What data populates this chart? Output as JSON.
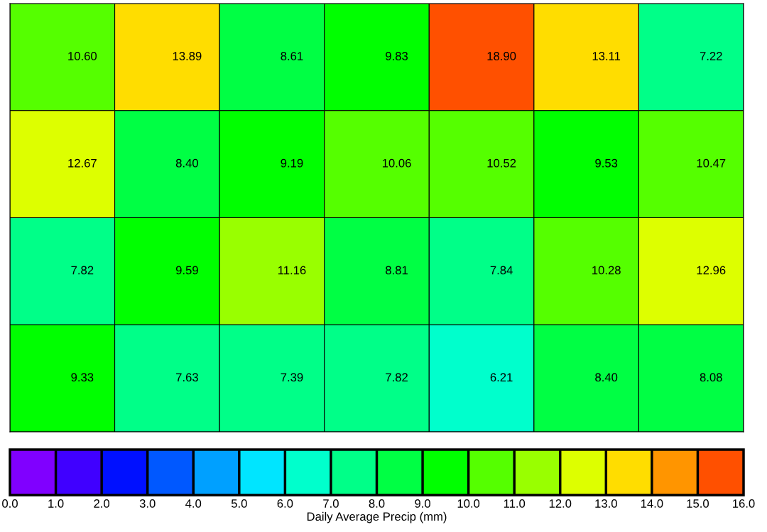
{
  "chart_data": {
    "type": "heatmap",
    "categories": [
      null,
      null,
      null,
      null,
      null,
      null,
      null
    ],
    "y_categories": [
      null,
      null,
      null,
      null
    ],
    "cells": [
      [
        10.6,
        13.89,
        8.61,
        9.83,
        18.9,
        13.11,
        7.22
      ],
      [
        12.67,
        8.4,
        9.19,
        10.06,
        10.52,
        9.53,
        10.47
      ],
      [
        7.82,
        9.59,
        11.16,
        8.81,
        7.84,
        10.28,
        12.96
      ],
      [
        9.33,
        7.63,
        7.39,
        7.82,
        6.21,
        8.4,
        8.08
      ]
    ],
    "cell_labels": [
      [
        "10.60",
        "13.89",
        "8.61",
        "9.83",
        "18.90",
        "13.11",
        "7.22"
      ],
      [
        "12.67",
        "8.40",
        "9.19",
        "10.06",
        "10.52",
        "9.53",
        "10.47"
      ],
      [
        "7.82",
        "9.59",
        "11.16",
        "8.81",
        "7.84",
        "10.28",
        "12.96"
      ],
      [
        "9.33",
        "7.63",
        "7.39",
        "7.82",
        "6.21",
        "8.40",
        "8.08"
      ]
    ],
    "clim": [
      0,
      16
    ],
    "cticks": [
      {
        "value": 0,
        "label": "0.0"
      },
      {
        "value": 1,
        "label": "1.0"
      },
      {
        "value": 2,
        "label": "2.0"
      },
      {
        "value": 3,
        "label": "3.0"
      },
      {
        "value": 4,
        "label": "4.0"
      },
      {
        "value": 5,
        "label": "5.0"
      },
      {
        "value": 6,
        "label": "6.0"
      },
      {
        "value": 7,
        "label": "7.0"
      },
      {
        "value": 8,
        "label": "8.0"
      },
      {
        "value": 9,
        "label": "9.0"
      },
      {
        "value": 10,
        "label": "10.0"
      },
      {
        "value": 11,
        "label": "11.0"
      },
      {
        "value": 12,
        "label": "12.0"
      },
      {
        "value": 13,
        "label": "13.0"
      },
      {
        "value": 14,
        "label": "14.0"
      },
      {
        "value": 15,
        "label": "15.0"
      },
      {
        "value": 16,
        "label": "16.0"
      }
    ],
    "colors": [
      "#8000ff",
      "#4000ff",
      "#0010ff",
      "#0058ff",
      "#00a0ff",
      "#00e5ff",
      "#00ffcc",
      "#00ff88",
      "#00ff44",
      "#00ff00",
      "#55ff00",
      "#99ff00",
      "#ddff00",
      "#ffdd00",
      "#ff9500",
      "#ff5000"
    ],
    "clabel": "Daily Average Precip (mm)"
  }
}
